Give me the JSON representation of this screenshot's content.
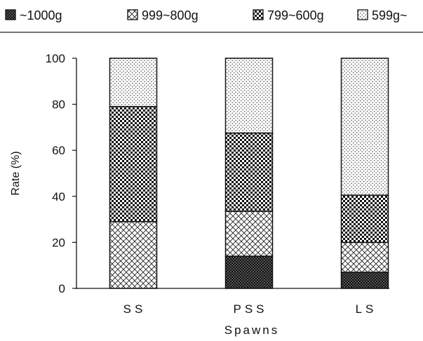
{
  "chart_data": {
    "type": "bar",
    "stacked": true,
    "categories": [
      "SS",
      "PSS",
      "LS"
    ],
    "series": [
      {
        "name": "~1000g",
        "values": [
          0,
          14,
          7
        ],
        "pattern": "dark-checker"
      },
      {
        "name": "999~800g",
        "values": [
          29,
          19.5,
          13
        ],
        "pattern": "crosshatch"
      },
      {
        "name": "799~600g",
        "values": [
          50,
          34,
          20.5
        ],
        "pattern": "checker"
      },
      {
        "name": "599g~",
        "values": [
          21,
          32.5,
          59.5
        ],
        "pattern": "dots"
      }
    ],
    "xlabel": "Spawns",
    "ylabel": "Rate (%)",
    "ylim": [
      0,
      100
    ],
    "yticks": [
      0,
      20,
      40,
      60,
      80,
      100
    ],
    "grid": false,
    "legend_position": "top"
  }
}
